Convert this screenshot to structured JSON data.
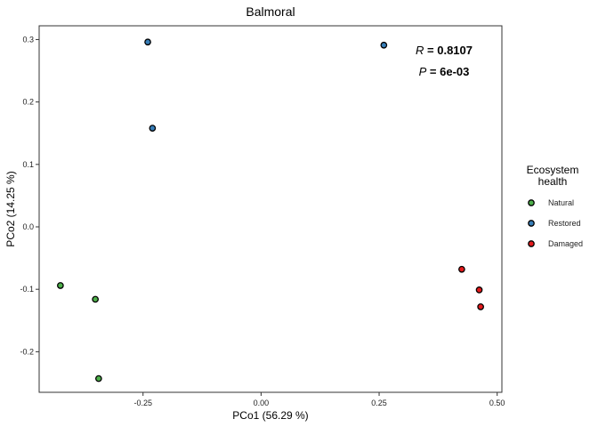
{
  "chart_data": {
    "type": "scatter",
    "title": "Balmoral",
    "xlabel": "PCo1 (56.29 %)",
    "ylabel": "PCo2 (14.25 %)",
    "xlim": [
      -0.47,
      0.51
    ],
    "ylim": [
      -0.265,
      0.322
    ],
    "xticks": [
      {
        "value": -0.25,
        "label": "-0.25"
      },
      {
        "value": 0.0,
        "label": "0.00"
      },
      {
        "value": 0.25,
        "label": "0.25"
      },
      {
        "value": 0.5,
        "label": "0.50"
      }
    ],
    "yticks": [
      {
        "value": -0.2,
        "label": "-0.2"
      },
      {
        "value": -0.1,
        "label": "-0.1"
      },
      {
        "value": 0.0,
        "label": "0.0"
      },
      {
        "value": 0.1,
        "label": "0.1"
      },
      {
        "value": 0.2,
        "label": "0.2"
      },
      {
        "value": 0.3,
        "label": "0.3"
      }
    ],
    "grid": false,
    "legend": {
      "title_lines": [
        "Ecosystem",
        "health"
      ],
      "placement": "right"
    },
    "annotation": {
      "r_symbol": "R",
      "r_value": " = 0.8107",
      "p_symbol": "P",
      "p_value": " = 6e-03",
      "placement": "top-right"
    },
    "series": [
      {
        "name": "Natural",
        "color": "#4daf4a",
        "points": [
          [
            -0.425,
            -0.094
          ],
          [
            -0.351,
            -0.116
          ],
          [
            -0.344,
            -0.243
          ]
        ]
      },
      {
        "name": "Restored",
        "color": "#377eb8",
        "points": [
          [
            -0.24,
            0.296
          ],
          [
            -0.23,
            0.158
          ],
          [
            0.26,
            0.291
          ]
        ]
      },
      {
        "name": "Damaged",
        "color": "#e41a1c",
        "points": [
          [
            0.425,
            -0.068
          ],
          [
            0.462,
            -0.101
          ],
          [
            0.465,
            -0.128
          ]
        ]
      }
    ]
  }
}
